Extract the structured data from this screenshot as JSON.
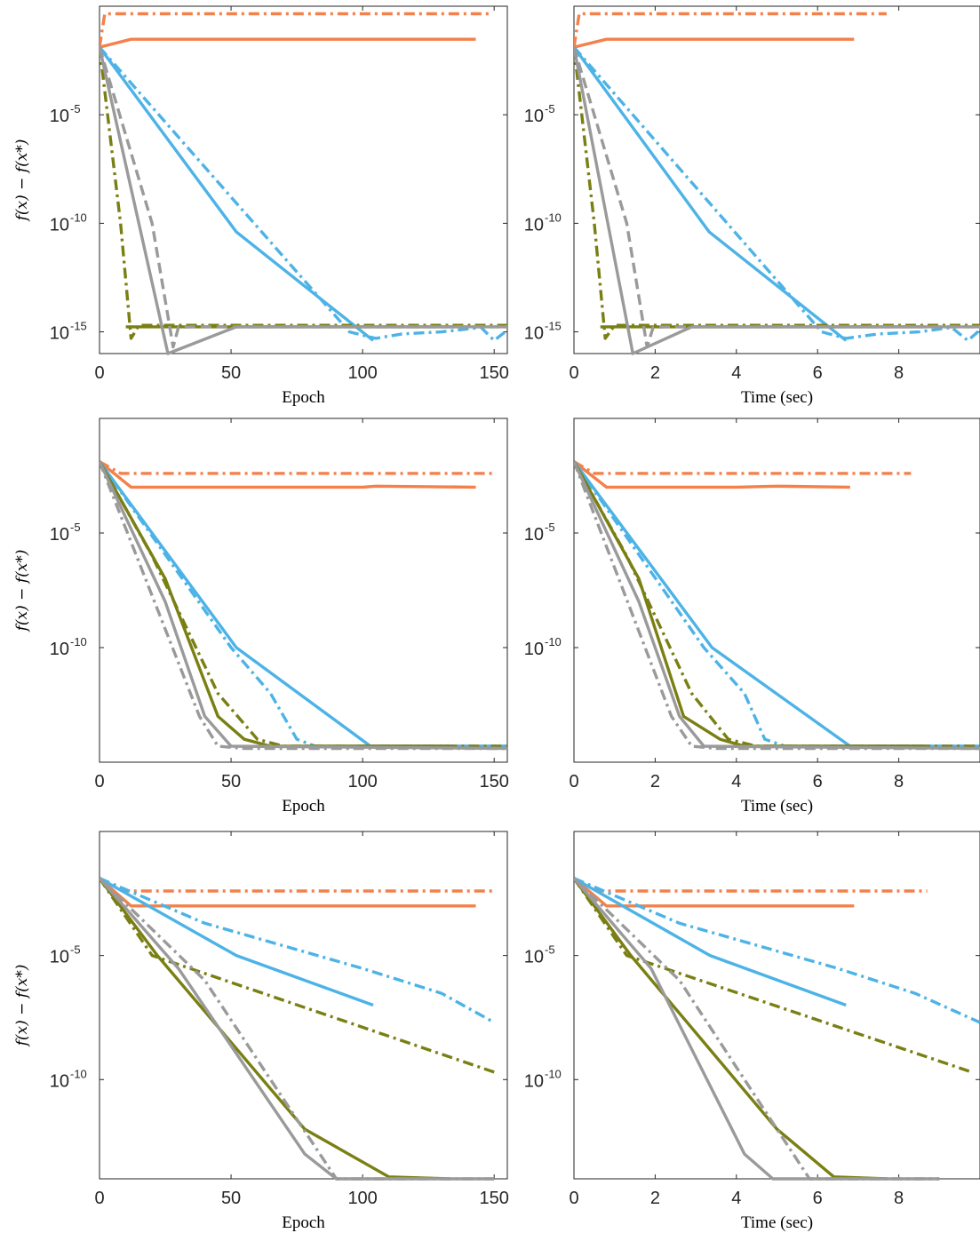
{
  "colors": {
    "orange": "#f4804a",
    "blue": "#4db3e6",
    "olive": "#7a7f14",
    "gray": "#9a9a9a"
  },
  "chart_data": [
    {
      "type": "line",
      "panel": "row1-left",
      "yscale": "log",
      "xlabel": "Epoch",
      "ylabel": "f(x) − f(x*)",
      "xlim": [
        0,
        155
      ],
      "ylim": [
        1e-16,
        1
      ],
      "xticks": [
        0,
        50,
        100,
        150
      ],
      "yticks": [
        1e-15,
        1e-10,
        1e-05
      ],
      "series": [
        {
          "color": "orange",
          "dash": "dashdot",
          "x": [
            0,
            2,
            148
          ],
          "y": [
            0.013,
            0.45,
            0.45
          ]
        },
        {
          "color": "orange",
          "dash": "solid",
          "x": [
            0,
            12,
            60,
            100,
            143
          ],
          "y": [
            0.013,
            0.03,
            0.03,
            0.03,
            0.03
          ]
        },
        {
          "color": "blue",
          "dash": "dashdot",
          "x": [
            0,
            95,
            105,
            115,
            130,
            145,
            150,
            155
          ],
          "y": [
            0.013,
            1e-15,
            5e-16,
            8e-16,
            1e-15,
            1.6e-15,
            4e-16,
            1.2e-15
          ]
        },
        {
          "color": "blue",
          "dash": "solid",
          "x": [
            0,
            52,
            104
          ],
          "y": [
            0.013,
            4e-11,
            4e-16
          ]
        },
        {
          "color": "olive",
          "dash": "dashdot",
          "x": [
            0,
            8,
            12,
            15,
            155
          ],
          "y": [
            0.013,
            1e-10,
            5e-16,
            2e-15,
            2e-15
          ]
        },
        {
          "color": "olive",
          "dash": "solid",
          "x": [
            10,
            135
          ],
          "y": [
            1.7e-15,
            1.7e-15
          ]
        },
        {
          "color": "gray",
          "dash": "dashed",
          "x": [
            0,
            20,
            28,
            30,
            35,
            155
          ],
          "y": [
            0.013,
            1e-10,
            2e-16,
            1.6e-15,
            1.7e-15,
            1.7e-15
          ]
        },
        {
          "color": "gray",
          "dash": "solid",
          "x": [
            0,
            26,
            52,
            155
          ],
          "y": [
            0.013,
            1e-16,
            1.7e-15,
            1.7e-15
          ]
        }
      ]
    },
    {
      "type": "line",
      "panel": "row1-right",
      "yscale": "log",
      "xlabel": "Time (sec)",
      "ylabel": "",
      "xlim": [
        0,
        10
      ],
      "ylim": [
        1e-16,
        1
      ],
      "xticks": [
        0,
        2,
        4,
        6,
        8
      ],
      "yticks": [
        1e-15,
        1e-10,
        1e-05
      ],
      "series": [
        {
          "color": "orange",
          "dash": "dashdot",
          "x": [
            0,
            0.13,
            7.7
          ],
          "y": [
            0.013,
            0.45,
            0.45
          ]
        },
        {
          "color": "orange",
          "dash": "solid",
          "x": [
            0,
            0.8,
            4,
            6.9
          ],
          "y": [
            0.013,
            0.03,
            0.03,
            0.03
          ]
        },
        {
          "color": "blue",
          "dash": "dashdot",
          "x": [
            0,
            6.1,
            6.7,
            7.5,
            8.5,
            9.3,
            9.7,
            10
          ],
          "y": [
            0.013,
            1e-15,
            5e-16,
            8e-16,
            1e-15,
            1.6e-15,
            4e-16,
            1.2e-15
          ]
        },
        {
          "color": "blue",
          "dash": "solid",
          "x": [
            0,
            3.33,
            6.7
          ],
          "y": [
            0.013,
            4e-11,
            4e-16
          ]
        },
        {
          "color": "olive",
          "dash": "dashdot",
          "x": [
            0,
            0.5,
            0.77,
            1,
            10
          ],
          "y": [
            0.013,
            1e-10,
            5e-16,
            2e-15,
            2e-15
          ]
        },
        {
          "color": "olive",
          "dash": "solid",
          "x": [
            0.65,
            8.6
          ],
          "y": [
            1.7e-15,
            1.7e-15
          ]
        },
        {
          "color": "gray",
          "dash": "dashed",
          "x": [
            0,
            1.3,
            1.8,
            1.95,
            2.25,
            10
          ],
          "y": [
            0.013,
            1e-10,
            2e-16,
            1.6e-15,
            1.7e-15,
            1.7e-15
          ]
        },
        {
          "color": "gray",
          "dash": "solid",
          "x": [
            0,
            1.45,
            2.9,
            10
          ],
          "y": [
            0.013,
            1e-16,
            1.7e-15,
            1.7e-15
          ]
        }
      ]
    },
    {
      "type": "line",
      "panel": "row2-left",
      "yscale": "log",
      "xlabel": "Epoch",
      "ylabel": "f(x) − f(x*)",
      "xlim": [
        0,
        155
      ],
      "ylim": [
        1e-15,
        1
      ],
      "xticks": [
        0,
        50,
        100,
        150
      ],
      "yticks": [
        1e-10,
        1e-05
      ],
      "series": [
        {
          "color": "orange",
          "dash": "dashdot",
          "x": [
            0,
            8,
            150
          ],
          "y": [
            0.013,
            0.004,
            0.004
          ]
        },
        {
          "color": "orange",
          "dash": "solid",
          "x": [
            0,
            12,
            60,
            100,
            105,
            143
          ],
          "y": [
            0.013,
            0.001,
            0.001,
            0.001,
            0.0011,
            0.001
          ]
        },
        {
          "color": "blue",
          "dash": "dashdot",
          "x": [
            0,
            50,
            65,
            75,
            82,
            100,
            155
          ],
          "y": [
            0.013,
            1e-10,
            1e-12,
            1e-14,
            5e-15,
            5e-15,
            5e-15
          ]
        },
        {
          "color": "blue",
          "dash": "solid",
          "x": [
            0,
            52,
            103,
            155
          ],
          "y": [
            0.013,
            1e-10,
            5e-15,
            5e-15
          ]
        },
        {
          "color": "olive",
          "dash": "dashdot",
          "x": [
            0,
            20,
            45,
            60,
            70,
            155
          ],
          "y": [
            0.013,
            1e-06,
            1e-12,
            1e-14,
            5e-15,
            5e-15
          ]
        },
        {
          "color": "olive",
          "dash": "solid",
          "x": [
            0,
            25,
            45,
            55,
            65,
            133
          ],
          "y": [
            0.013,
            1e-07,
            1e-13,
            1e-14,
            5e-15,
            5e-15
          ]
        },
        {
          "color": "gray",
          "dash": "dashdot",
          "x": [
            0,
            38,
            45,
            55,
            155
          ],
          "y": [
            0.013,
            1e-13,
            5e-15,
            4e-15,
            4e-15
          ]
        },
        {
          "color": "gray",
          "dash": "solid",
          "x": [
            0,
            25,
            40,
            50,
            155
          ],
          "y": [
            0.013,
            1e-08,
            1e-13,
            5e-15,
            4e-15
          ]
        }
      ]
    },
    {
      "type": "line",
      "panel": "row2-right",
      "yscale": "log",
      "xlabel": "Time (sec)",
      "ylabel": "",
      "xlim": [
        0,
        10
      ],
      "ylim": [
        1e-15,
        1
      ],
      "xticks": [
        0,
        2,
        4,
        6,
        8
      ],
      "yticks": [
        1e-10,
        1e-05
      ],
      "series": [
        {
          "color": "orange",
          "dash": "dashdot",
          "x": [
            0,
            0.5,
            8.3
          ],
          "y": [
            0.013,
            0.004,
            0.004
          ]
        },
        {
          "color": "orange",
          "dash": "solid",
          "x": [
            0,
            0.8,
            4,
            5,
            6.8
          ],
          "y": [
            0.013,
            0.001,
            0.001,
            0.0011,
            0.001
          ]
        },
        {
          "color": "blue",
          "dash": "dashdot",
          "x": [
            0,
            3.2,
            4.2,
            4.7,
            5.2,
            7,
            10
          ],
          "y": [
            0.013,
            1e-10,
            1e-12,
            1e-14,
            5e-15,
            5e-15,
            5e-15
          ]
        },
        {
          "color": "blue",
          "dash": "solid",
          "x": [
            0,
            3.4,
            6.8,
            10
          ],
          "y": [
            0.013,
            1e-10,
            5e-15,
            5e-15
          ]
        },
        {
          "color": "olive",
          "dash": "dashdot",
          "x": [
            0,
            1.3,
            2.9,
            3.8,
            4.5,
            10
          ],
          "y": [
            0.013,
            1e-06,
            1e-12,
            1e-14,
            5e-15,
            5e-15
          ]
        },
        {
          "color": "olive",
          "dash": "solid",
          "x": [
            0,
            1.6,
            2.7,
            3.6,
            4.2,
            8.6
          ],
          "y": [
            0.013,
            1e-07,
            1e-13,
            1e-14,
            5e-15,
            5e-15
          ]
        },
        {
          "color": "gray",
          "dash": "dashdot",
          "x": [
            0,
            2.4,
            2.9,
            3.5,
            10
          ],
          "y": [
            0.013,
            1e-13,
            5e-15,
            4e-15,
            4e-15
          ]
        },
        {
          "color": "gray",
          "dash": "solid",
          "x": [
            0,
            1.6,
            2.6,
            3.2,
            10
          ],
          "y": [
            0.013,
            1e-08,
            1e-13,
            5e-15,
            4e-15
          ]
        }
      ]
    },
    {
      "type": "line",
      "panel": "row3-left",
      "yscale": "log",
      "xlabel": "Epoch",
      "ylabel": "f(x) − f(x*)",
      "xlim": [
        0,
        155
      ],
      "ylim": [
        1e-14,
        1
      ],
      "xticks": [
        0,
        50,
        100,
        150
      ],
      "yticks": [
        1e-10,
        1e-05
      ],
      "series": [
        {
          "color": "orange",
          "dash": "dashdot",
          "x": [
            0,
            10,
            150
          ],
          "y": [
            0.013,
            0.004,
            0.004
          ]
        },
        {
          "color": "orange",
          "dash": "solid",
          "x": [
            0,
            12,
            60,
            100,
            143
          ],
          "y": [
            0.013,
            0.001,
            0.001,
            0.001,
            0.001
          ]
        },
        {
          "color": "blue",
          "dash": "dashdot",
          "x": [
            0,
            40,
            100,
            130,
            150
          ],
          "y": [
            0.013,
            0.0002,
            3e-06,
            3e-07,
            2e-08
          ]
        },
        {
          "color": "blue",
          "dash": "solid",
          "x": [
            0,
            52,
            104
          ],
          "y": [
            0.013,
            1e-05,
            1e-07
          ]
        },
        {
          "color": "olive",
          "dash": "dashdot",
          "x": [
            0,
            20,
            150
          ],
          "y": [
            0.013,
            1e-05,
            2e-10
          ]
        },
        {
          "color": "olive",
          "dash": "solid",
          "x": [
            0,
            22,
            78,
            110,
            133
          ],
          "y": [
            0.013,
            1e-05,
            1e-12,
            1.2e-14,
            1e-14
          ]
        },
        {
          "color": "gray",
          "dash": "dashdot",
          "x": [
            0,
            40,
            90,
            150
          ],
          "y": [
            0.013,
            1e-06,
            1e-14,
            1e-14
          ]
        },
        {
          "color": "gray",
          "dash": "solid",
          "x": [
            0,
            30,
            78,
            90,
            150
          ],
          "y": [
            0.013,
            3e-06,
            1e-13,
            1e-14,
            1e-14
          ]
        }
      ]
    },
    {
      "type": "line",
      "panel": "row3-right",
      "yscale": "log",
      "xlabel": "Time (sec)",
      "ylabel": "",
      "xlim": [
        0,
        10
      ],
      "ylim": [
        1e-14,
        1
      ],
      "xticks": [
        0,
        2,
        4,
        6,
        8
      ],
      "yticks": [
        1e-10,
        1e-05
      ],
      "series": [
        {
          "color": "orange",
          "dash": "dashdot",
          "x": [
            0,
            0.6,
            8.7
          ],
          "y": [
            0.013,
            0.004,
            0.004
          ]
        },
        {
          "color": "orange",
          "dash": "solid",
          "x": [
            0,
            0.8,
            4,
            6.9
          ],
          "y": [
            0.013,
            0.001,
            0.001,
            0.001
          ]
        },
        {
          "color": "blue",
          "dash": "dashdot",
          "x": [
            0,
            2.6,
            6.5,
            8.4,
            10
          ],
          "y": [
            0.013,
            0.0002,
            3e-06,
            3e-07,
            2e-08
          ]
        },
        {
          "color": "blue",
          "dash": "solid",
          "x": [
            0,
            3.35,
            6.7
          ],
          "y": [
            0.013,
            1e-05,
            1e-07
          ]
        },
        {
          "color": "olive",
          "dash": "dashdot",
          "x": [
            0,
            1.3,
            9.8
          ],
          "y": [
            0.013,
            1e-05,
            2e-10
          ]
        },
        {
          "color": "olive",
          "dash": "solid",
          "x": [
            0,
            1.4,
            5,
            6.4,
            7.7
          ],
          "y": [
            0.013,
            1e-05,
            1e-12,
            1.2e-14,
            1e-14
          ]
        },
        {
          "color": "gray",
          "dash": "dashdot",
          "x": [
            0,
            2.6,
            5.8,
            9
          ],
          "y": [
            0.013,
            1e-06,
            1e-14,
            1e-14
          ]
        },
        {
          "color": "gray",
          "dash": "solid",
          "x": [
            0,
            1.9,
            4.2,
            4.9,
            9
          ],
          "y": [
            0.013,
            3e-06,
            1e-13,
            1e-14,
            1e-14
          ]
        }
      ]
    }
  ]
}
